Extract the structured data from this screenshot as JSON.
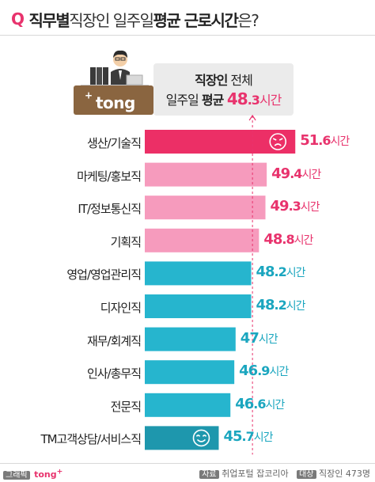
{
  "title": {
    "q": "Q",
    "part1": "직무별",
    "part2": " 직장인 일주일 ",
    "part3": "평균 근로시간",
    "part4": "은?"
  },
  "logo": {
    "text": "tong",
    "sup": "+"
  },
  "average_box": {
    "line1_bold": "직장인",
    "line1_rest": " 전체",
    "line2_prefix": "일주일 ",
    "line2_bold": "평균 ",
    "value_int": "48",
    "value_dec": ".3",
    "unit": "시간",
    "value": 48.3
  },
  "colors": {
    "accent_pink": "#e8336d",
    "highlight_bar": "#ec2f66",
    "pink_bar": "#f69bbd",
    "blue_bar": "#26b5ce",
    "low_bar": "#1e97ad",
    "blue_text": "#1ba6bf"
  },
  "chart_data": {
    "type": "bar",
    "orientation": "horizontal",
    "unit": "시간",
    "categories": [
      "생산/기술직",
      "마케팅/홍보직",
      "IT/정보통신직",
      "기획직",
      "영업/영업관리직",
      "디자인직",
      "재무/회계직",
      "인사/총무직",
      "전문직",
      "TM고객상담/서비스직"
    ],
    "values": [
      51.6,
      49.4,
      49.3,
      48.8,
      48.2,
      48.2,
      47,
      46.9,
      46.6,
      45.7
    ],
    "value_labels": [
      {
        "int": "51",
        "dec": ".6"
      },
      {
        "int": "49",
        "dec": ".4"
      },
      {
        "int": "49",
        "dec": ".3"
      },
      {
        "int": "48",
        "dec": ".8"
      },
      {
        "int": "48",
        "dec": ".2"
      },
      {
        "int": "48",
        "dec": ".2"
      },
      {
        "int": "47",
        "dec": ""
      },
      {
        "int": "46",
        "dec": ".9"
      },
      {
        "int": "46",
        "dec": ".6"
      },
      {
        "int": "45",
        "dec": ".7"
      }
    ],
    "reference_line": 48.3,
    "highlight": {
      "max": "생산/기술직",
      "min": "TM고객상담/서비스직"
    },
    "icons": {
      "max": "angry-face-icon",
      "min": "smiling-face-icon"
    },
    "grid": false,
    "legend": "none"
  },
  "footer": {
    "graphic_tag": "그래픽",
    "brand": "tong",
    "brand_sup": "+",
    "source_tag": "자료",
    "source": "취업포털 잡코리아",
    "target_tag": "대상",
    "target": "직장인 473명"
  }
}
